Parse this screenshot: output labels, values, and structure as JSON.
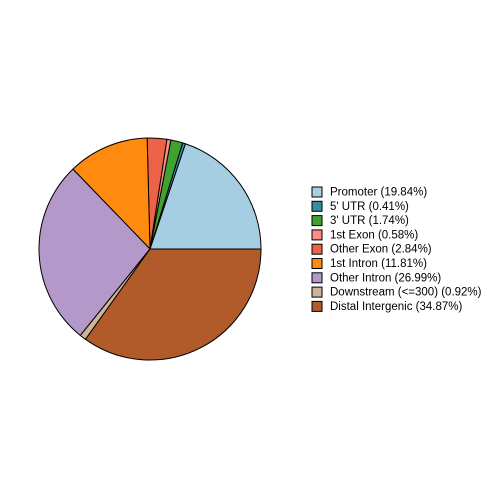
{
  "chart_data": {
    "type": "pie",
    "categories": [
      "Promoter (19.84%)",
      "5' UTR (0.41%)",
      "3' UTR (1.74%)",
      "1st Exon (0.58%)",
      "Other Exon (2.84%)",
      "1st Intron (11.81%)",
      "Other Intron (26.99%)",
      "Downstream (<=300) (0.92%)",
      "Distal Intergenic (34.87%)"
    ],
    "values": [
      19.84,
      0.41,
      1.74,
      0.58,
      2.84,
      11.81,
      26.99,
      0.92,
      34.87
    ],
    "colors": [
      "#a6cee3",
      "#3b8c9c",
      "#3fa22f",
      "#f88e86",
      "#ee6347",
      "#ff8a10",
      "#b498c9",
      "#cfb598",
      "#b15a2a"
    ],
    "legend": "right"
  }
}
